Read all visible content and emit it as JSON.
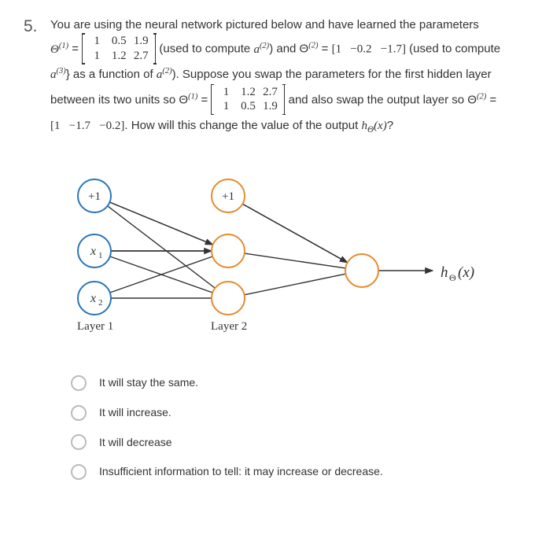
{
  "question_number": "5.",
  "stem": {
    "l1": "You are using the neural network pictured below and have learned the parameters",
    "l2a": "Θ",
    "l2a_sup": "(1)",
    "l2b": " = ",
    "m1": {
      "r1": [
        "1",
        "0.5",
        "1.9"
      ],
      "r2": [
        "1",
        "1.2",
        "2.7"
      ]
    },
    "l2c": " (used to compute ",
    "l2d": "a",
    "l2d_sup": "(2)",
    "l2e": ") and Θ",
    "l2e_sup": "(2)",
    "l2f": " = ",
    "m2": [
      "1",
      "−0.2",
      "−1.7"
    ],
    "l2g": " (used to",
    "l3a": "compute ",
    "l3b": "a",
    "l3b_sup": "(3)",
    "l3c": "} as a function of ",
    "l3d": "a",
    "l3d_sup": "(2)",
    "l3e": "). Suppose you swap the parameters for the first",
    "l4a": "hidden layer between its two units so Θ",
    "l4a_sup": "(1)",
    "l4b": " = ",
    "m3": {
      "r1": [
        "1",
        "1.2",
        "2.7"
      ],
      "r2": [
        "1",
        "0.5",
        "1.9"
      ]
    },
    "l4c": " and also swap the output",
    "l5a": "layer so Θ",
    "l5a_sup": "(2)",
    "l5b": " = ",
    "m4": [
      "1",
      "−1.7",
      "−0.2"
    ],
    "l5c": ". How will this change the value of the output ",
    "l5d": "h",
    "l5d_sub": "Θ",
    "l5e": "(x)",
    "l5f": "?"
  },
  "diagram": {
    "bias1": "+1",
    "bias2": "+1",
    "x1": "x",
    "x1_sub": "1",
    "x2": "x",
    "x2_sub": "2",
    "layer1": "Layer 1",
    "layer2": "Layer 2",
    "out_h": "h",
    "out_sub": "Θ",
    "out_arg": "(x)",
    "colors": {
      "blue": "#2a74b8",
      "orange": "#e68a2e",
      "edge": "#333333",
      "arrow": "#333333",
      "text": "#333333"
    },
    "node_r": 21,
    "stroke_w": 2
  },
  "options": [
    "It will stay the same.",
    "It will increase.",
    "It will decrease",
    "Insufficient information to tell: it may increase or decrease."
  ]
}
